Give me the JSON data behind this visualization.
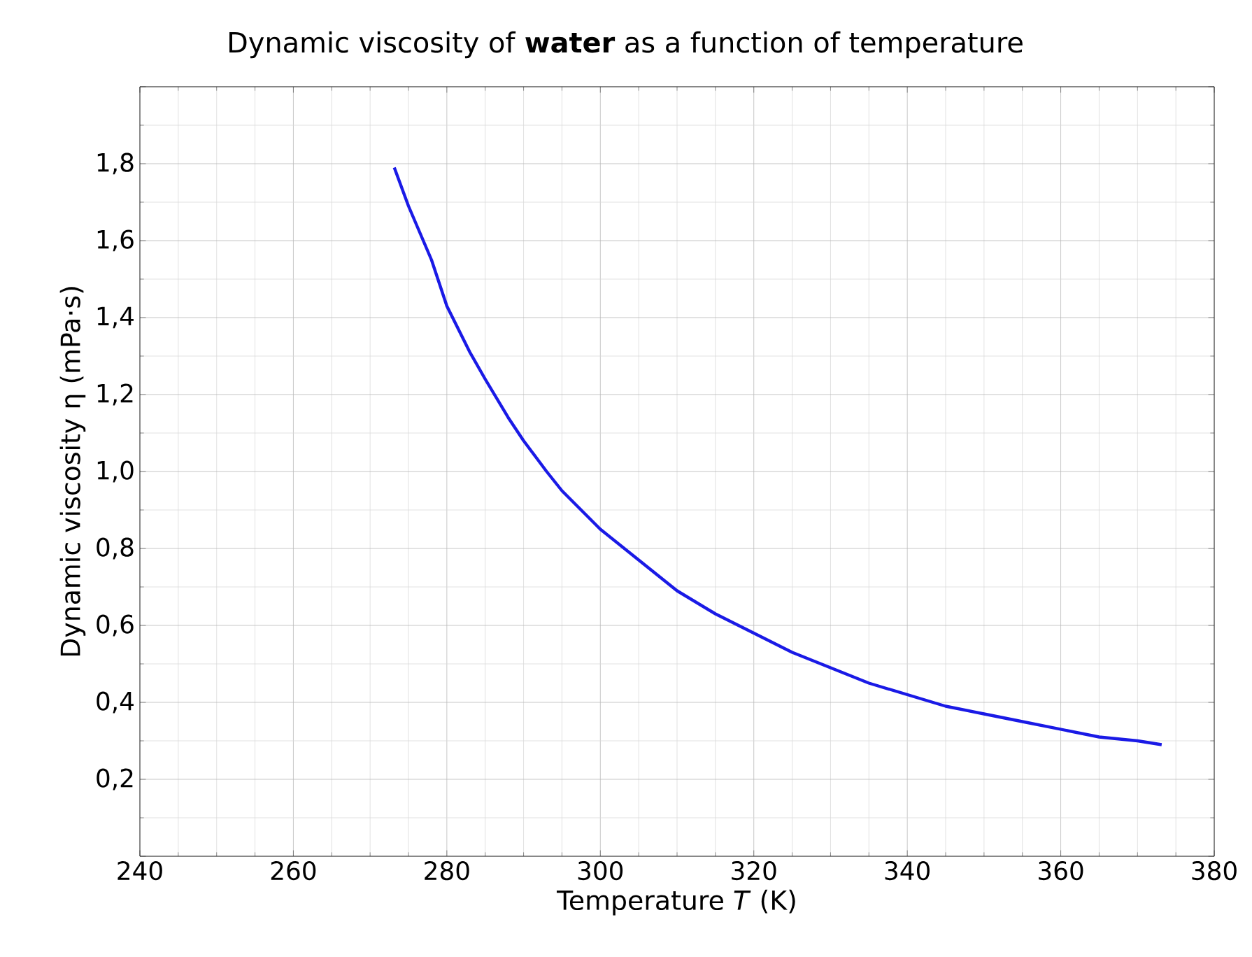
{
  "chart_data": {
    "type": "line",
    "title": "Dynamic viscosity of **water** as a function of temperature",
    "xlabel": "Temperature *T* (K)",
    "ylabel": "Dynamic viscosity η (mPa·s)",
    "x": [
      273.15,
      275,
      278,
      280,
      283,
      285,
      288,
      290,
      293,
      295,
      298,
      300,
      305,
      310,
      315,
      320,
      325,
      330,
      335,
      340,
      345,
      350,
      355,
      360,
      365,
      370,
      373.15
    ],
    "series": [
      {
        "color": "#1a1ae6",
        "values": [
          1.79,
          1.69,
          1.55,
          1.43,
          1.31,
          1.24,
          1.14,
          1.08,
          1.0,
          0.95,
          0.89,
          0.85,
          0.77,
          0.69,
          0.63,
          0.58,
          0.53,
          0.49,
          0.45,
          0.42,
          0.39,
          0.37,
          0.35,
          0.33,
          0.31,
          0.3,
          0.29
        ]
      }
    ],
    "xlim": [
      240,
      380
    ],
    "ylim": [
      0,
      2.0
    ],
    "xticks": [
      240,
      260,
      280,
      300,
      320,
      340,
      360,
      380
    ],
    "yticks": [
      {
        "value": 0,
        "label": null
      },
      {
        "value": 0.2,
        "label": "0,2"
      },
      {
        "value": 0.4,
        "label": "0,4"
      },
      {
        "value": 0.6,
        "label": "0,6"
      },
      {
        "value": 0.8,
        "label": "0,8"
      },
      {
        "value": 1.0,
        "label": "1,0"
      },
      {
        "value": 1.2,
        "label": "1,2"
      },
      {
        "value": 1.4,
        "label": "1,4"
      },
      {
        "value": 1.6,
        "label": "1,6"
      },
      {
        "value": 1.8,
        "label": "1,8"
      },
      {
        "value": 2.0,
        "label": null
      }
    ],
    "grid": true,
    "marker": "none",
    "line_style": "solid"
  }
}
